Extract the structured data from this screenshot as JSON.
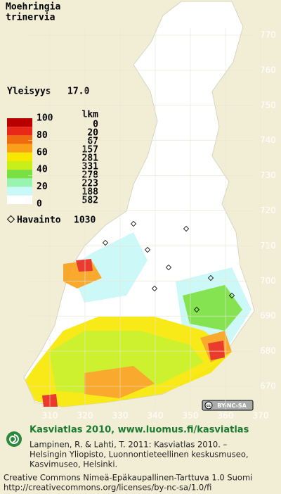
{
  "title": [
    "Moehringia",
    "trinervia"
  ],
  "frequency": {
    "label": "Yleisyys",
    "value": "17.0"
  },
  "legend": {
    "scale_labels": [
      100,
      80,
      60,
      40,
      20,
      0
    ],
    "colors": [
      "#b80000",
      "#e82818",
      "#f06a10",
      "#f8a018",
      "#f8e800",
      "#c8f018",
      "#78e040",
      "#98f4b0",
      "#c8f8f8",
      "#ffffff"
    ],
    "count_header": "lkm",
    "counts": [
      0,
      20,
      67,
      157,
      281,
      331,
      278,
      223,
      188,
      582
    ]
  },
  "observations": {
    "label": "Havainto",
    "count": 1030
  },
  "y_axis": [
    770,
    760,
    750,
    740,
    730,
    720,
    710,
    700,
    690,
    680,
    670
  ],
  "x_axis": [
    310,
    320,
    330,
    340,
    350,
    360,
    370
  ],
  "license_badge": "BY-NC-SA",
  "footer": {
    "heading": "Kasviatlas 2010, www.luomus.fi/kasviatlas",
    "citation": [
      "Lampinen, R. & Lahti, T. 2011: Kasviatlas 2010. –",
      "Helsingin Yliopisto, Luonnontieteellinen keskusmuseo,",
      "Kasvimuseo, Helsinki."
    ],
    "license": [
      "Creative Commons Nimeä-Epäkaupallinen-Tarttuva 1.0 Suomi",
      "http://creativecommons.org/licenses/by-nc-sa/1.0/fi"
    ]
  }
}
